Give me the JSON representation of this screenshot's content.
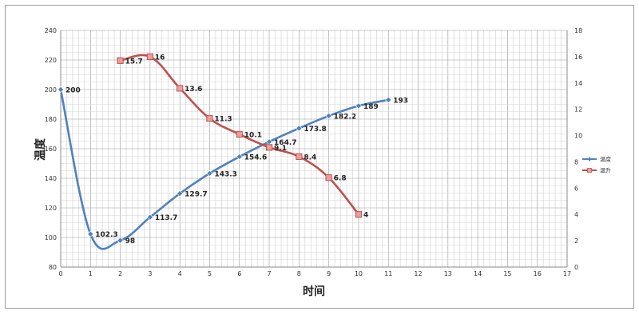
{
  "chart_data": {
    "type": "line",
    "xlabel": "时间",
    "ylabel": "温度",
    "xlim": [
      0,
      17
    ],
    "ylim_left": [
      80,
      240
    ],
    "ylim_right": [
      0,
      18
    ],
    "x_ticks": [
      0,
      1,
      2,
      3,
      4,
      5,
      6,
      7,
      8,
      9,
      10,
      11,
      12,
      13,
      14,
      15,
      16,
      17
    ],
    "y_left_ticks": [
      80,
      100,
      120,
      140,
      160,
      180,
      200,
      220,
      240
    ],
    "y_right_ticks": [
      0,
      2,
      4,
      6,
      8,
      10,
      12,
      14,
      16,
      18
    ],
    "grid": true,
    "legend_position": "right",
    "series": [
      {
        "name": "温度",
        "axis": "left",
        "color": "#4f81bd",
        "marker": "diamond",
        "x": [
          0,
          1,
          2,
          3,
          4,
          5,
          6,
          7,
          8,
          9,
          10,
          11
        ],
        "values": [
          200,
          102.3,
          98,
          113.7,
          129.7,
          143.3,
          154.6,
          164.7,
          173.8,
          182.2,
          189,
          193
        ],
        "labels": [
          "200",
          "102.3",
          "98",
          "113.7",
          "129.7",
          "143.3",
          "154.6",
          "164.7",
          "173.8",
          "182.2",
          "189",
          "193"
        ]
      },
      {
        "name": "温升",
        "axis": "right",
        "color": "#c0504d",
        "marker": "square",
        "x": [
          2,
          3,
          4,
          5,
          6,
          7,
          8,
          9,
          10
        ],
        "values": [
          15.7,
          16,
          13.6,
          11.3,
          10.1,
          9.1,
          8.4,
          6.8,
          4
        ],
        "labels": [
          "15.7",
          "16",
          "13.6",
          "11.3",
          "10.1",
          "9.1",
          "8.4",
          "6.8",
          "4"
        ]
      }
    ]
  }
}
